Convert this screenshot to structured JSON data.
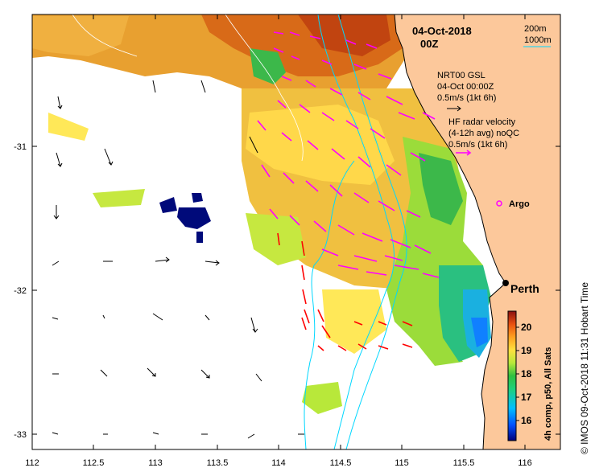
{
  "map": {
    "date_title": "04-Oct-2018",
    "time_title": "00Z",
    "isobath_labels": [
      "200m",
      "1000m"
    ],
    "legend_gsl_lines": [
      "NRT00 GSL",
      "04-Oct 00:00Z",
      "0.5m/s (1kt 6h)"
    ],
    "legend_hf_lines": [
      "HF radar velocity",
      "(4-12h avg) noQC",
      "0.5m/s (1kt 6h)"
    ],
    "argo_label": "Argo",
    "city_label": "Perth",
    "colorbar_label": "4h comp, p50, All Sats",
    "colorbar_ticks": [
      "20",
      "19",
      "18",
      "17",
      "16"
    ],
    "credit": "© IMOS 09-Oct-2018 11:31 Hobart Time",
    "lon_ticks": [
      "112",
      "112.5",
      "113",
      "113.5",
      "114",
      "114.5",
      "115",
      "115.5",
      "116"
    ],
    "lat_ticks": [
      "-31",
      "-32",
      "-33"
    ],
    "colors": {
      "land": "#fcc89b",
      "gsl_arrow": "#000000",
      "hf_arrow": "#ff00ff",
      "hf_arrow_strong": "#ff0000",
      "isobath": "#00d7ff",
      "argo": "#ff00ff"
    }
  }
}
